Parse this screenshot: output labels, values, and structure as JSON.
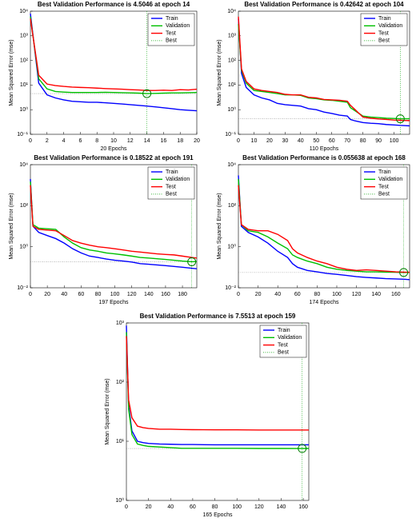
{
  "chart_data": [
    {
      "type": "line",
      "title": "Best Validation Performance is 4.5046 at epoch 14",
      "xlabel": "20 Epochs",
      "ylabel": "Mean Squared Error  (mse)",
      "yscale": "log",
      "legend": "northeast",
      "xlim": [
        0,
        20
      ],
      "xticks": [
        0,
        2,
        4,
        6,
        8,
        10,
        12,
        14,
        16,
        18,
        20
      ],
      "ylim": [
        0.1,
        10000
      ],
      "yticks": [
        {
          "value": 0.1,
          "label": "10⁻¹"
        },
        {
          "value": 1,
          "label": "10⁰"
        },
        {
          "value": 10,
          "label": "10¹"
        },
        {
          "value": 100,
          "label": "10²"
        },
        {
          "value": 1000,
          "label": "10³"
        },
        {
          "value": 10000,
          "label": "10⁴"
        }
      ],
      "x": [
        0,
        1,
        2,
        3,
        4,
        5,
        6,
        7,
        8,
        9,
        10,
        11,
        12,
        13,
        14,
        15,
        16,
        17,
        18,
        19,
        20
      ],
      "series": [
        {
          "name": "Train",
          "color": "#0000ff",
          "values": [
            8000,
            12,
            4,
            3,
            2.5,
            2.2,
            2.1,
            2.0,
            2.0,
            1.9,
            1.8,
            1.7,
            1.6,
            1.5,
            1.4,
            1.3,
            1.2,
            1.1,
            1.0,
            0.95,
            0.9
          ]
        },
        {
          "name": "Validation",
          "color": "#00c000",
          "values": [
            6000,
            18,
            7,
            5.5,
            5.2,
            5.0,
            5.0,
            5.0,
            5.0,
            5.1,
            5.0,
            4.9,
            4.8,
            4.7,
            4.5046,
            4.6,
            4.7,
            4.8,
            4.8,
            4.9,
            5.0
          ]
        },
        {
          "name": "Test",
          "color": "#ff0000",
          "values": [
            5000,
            25,
            11,
            9.5,
            8.8,
            8.3,
            8,
            7.8,
            7.5,
            7.2,
            7,
            6.8,
            6.5,
            6.3,
            6.0,
            6.0,
            6.2,
            6.0,
            6.5,
            6.3,
            6.8
          ]
        }
      ],
      "best": {
        "name": "Best",
        "color": "#00a000",
        "x": 14,
        "y": 4.5046
      }
    },
    {
      "type": "line",
      "title": "Best Validation Performance is 0.42642 at epoch 104",
      "xlabel": "110 Epochs",
      "ylabel": "Mean Squared Error  (mse)",
      "yscale": "log",
      "legend": "northeast",
      "xlim": [
        0,
        110
      ],
      "xticks": [
        0,
        10,
        20,
        30,
        40,
        50,
        60,
        70,
        80,
        90,
        100
      ],
      "ylim": [
        0.1,
        10000
      ],
      "yticks": [
        {
          "value": 0.1,
          "label": "10⁻¹"
        },
        {
          "value": 1,
          "label": "10⁰"
        },
        {
          "value": 10,
          "label": "10¹"
        },
        {
          "value": 100,
          "label": "10²"
        },
        {
          "value": 1000,
          "label": "10³"
        },
        {
          "value": 10000,
          "label": "10⁴"
        }
      ],
      "x": [
        0,
        2,
        5,
        10,
        15,
        20,
        25,
        30,
        35,
        40,
        45,
        50,
        55,
        60,
        65,
        70,
        72,
        75,
        80,
        85,
        90,
        95,
        100,
        104,
        110
      ],
      "series": [
        {
          "name": "Train",
          "color": "#0000ff",
          "values": [
            5000,
            30,
            8,
            4,
            3,
            2.5,
            1.8,
            1.6,
            1.5,
            1.4,
            1.1,
            1.0,
            0.8,
            0.7,
            0.6,
            0.55,
            0.4,
            0.35,
            0.3,
            0.28,
            0.27,
            0.25,
            0.24,
            0.23,
            0.22
          ]
        },
        {
          "name": "Validation",
          "color": "#00c000",
          "values": [
            3000,
            40,
            12,
            6,
            5.5,
            5,
            4.5,
            4,
            4,
            3.8,
            3,
            2.8,
            2.5,
            2.4,
            2.2,
            2,
            1.2,
            0.9,
            0.55,
            0.5,
            0.48,
            0.45,
            0.44,
            0.42642,
            0.43
          ]
        },
        {
          "name": "Test",
          "color": "#ff0000",
          "values": [
            6000,
            45,
            14,
            7,
            6,
            5.5,
            5,
            4.2,
            4,
            4,
            3.2,
            3,
            2.6,
            2.5,
            2.4,
            2.2,
            1.5,
            1.0,
            0.5,
            0.45,
            0.42,
            0.4,
            0.38,
            0.37,
            0.36
          ]
        }
      ],
      "best": {
        "name": "Best",
        "color": "#00a000",
        "x": 104,
        "y": 0.42642
      }
    },
    {
      "type": "line",
      "title": "Best Validation Performance is 0.18522 at epoch 191",
      "xlabel": "197 Epochs",
      "ylabel": "Mean Squared Error  (mse)",
      "yscale": "log",
      "legend": "northeast",
      "xlim": [
        0,
        197
      ],
      "xticks": [
        0,
        20,
        40,
        60,
        80,
        100,
        120,
        140,
        160,
        180
      ],
      "ylim": [
        0.01,
        10000
      ],
      "yticks": [
        {
          "value": 0.01,
          "label": "10⁻²"
        },
        {
          "value": 1,
          "label": "10⁰"
        },
        {
          "value": 100,
          "label": "10²"
        },
        {
          "value": 10000,
          "label": "10⁴"
        }
      ],
      "x": [
        0,
        3,
        10,
        20,
        30,
        40,
        50,
        60,
        70,
        80,
        90,
        100,
        110,
        120,
        130,
        140,
        150,
        160,
        170,
        180,
        191,
        197
      ],
      "series": [
        {
          "name": "Train",
          "color": "#0000ff",
          "values": [
            2000,
            10,
            5,
            3.5,
            2.5,
            1.5,
            0.8,
            0.5,
            0.35,
            0.3,
            0.25,
            0.22,
            0.2,
            0.18,
            0.15,
            0.14,
            0.13,
            0.12,
            0.11,
            0.1,
            0.09,
            0.085
          ]
        },
        {
          "name": "Validation",
          "color": "#00c000",
          "values": [
            1500,
            12,
            8,
            7.5,
            7,
            3,
            1.5,
            0.9,
            0.7,
            0.6,
            0.5,
            0.45,
            0.4,
            0.35,
            0.3,
            0.28,
            0.26,
            0.24,
            0.22,
            0.2,
            0.18522,
            0.19
          ]
        },
        {
          "name": "Test",
          "color": "#ff0000",
          "values": [
            1000,
            10,
            7,
            6.5,
            6,
            3.5,
            2,
            1.5,
            1.2,
            1,
            0.9,
            0.8,
            0.7,
            0.6,
            0.55,
            0.5,
            0.45,
            0.42,
            0.4,
            0.35,
            0.3,
            0.28
          ]
        }
      ],
      "best": {
        "name": "Best",
        "color": "#00a000",
        "x": 191,
        "y": 0.18522
      }
    },
    {
      "type": "line",
      "title": "Best Validation Performance is 0.055638 at epoch 168",
      "xlabel": "174 Epochs",
      "ylabel": "Mean Squared Error  (mse)",
      "yscale": "log",
      "legend": "northeast",
      "xlim": [
        0,
        174
      ],
      "xticks": [
        0,
        20,
        40,
        60,
        80,
        100,
        120,
        140,
        160
      ],
      "ylim": [
        0.01,
        10000
      ],
      "yticks": [
        {
          "value": 0.01,
          "label": "10⁻²"
        },
        {
          "value": 1,
          "label": "10⁰"
        },
        {
          "value": 100,
          "label": "10²"
        },
        {
          "value": 10000,
          "label": "10⁴"
        }
      ],
      "x": [
        0,
        3,
        10,
        20,
        30,
        40,
        50,
        55,
        60,
        70,
        80,
        90,
        100,
        110,
        120,
        130,
        140,
        150,
        160,
        168,
        174
      ],
      "series": [
        {
          "name": "Train",
          "color": "#0000ff",
          "values": [
            3000,
            10,
            5,
            3,
            1.5,
            0.6,
            0.3,
            0.15,
            0.1,
            0.07,
            0.06,
            0.05,
            0.045,
            0.04,
            0.035,
            0.032,
            0.03,
            0.028,
            0.027,
            0.026,
            0.025
          ]
        },
        {
          "name": "Validation",
          "color": "#00c000",
          "values": [
            2000,
            12,
            6,
            5,
            3,
            1.5,
            0.8,
            0.4,
            0.3,
            0.2,
            0.15,
            0.1,
            0.08,
            0.07,
            0.065,
            0.06,
            0.06,
            0.058,
            0.057,
            0.055638,
            0.056
          ]
        },
        {
          "name": "Test",
          "color": "#ff0000",
          "values": [
            1000,
            12,
            7,
            6,
            6,
            4,
            2,
            0.8,
            0.5,
            0.3,
            0.2,
            0.15,
            0.1,
            0.08,
            0.07,
            0.075,
            0.07,
            0.065,
            0.06,
            0.058,
            0.057
          ]
        }
      ],
      "best": {
        "name": "Best",
        "color": "#00a000",
        "x": 168,
        "y": 0.055638
      }
    },
    {
      "type": "line",
      "title": "Best Validation Performance is 7.5513 at epoch 159",
      "xlabel": "165 Epochs",
      "ylabel": "Mean Squared Error  (mse)",
      "yscale": "log",
      "legend": "northeast",
      "xlim": [
        0,
        165
      ],
      "xticks": [
        0,
        20,
        40,
        60,
        80,
        100,
        120,
        140,
        160
      ],
      "ylim": [
        1,
        1000
      ],
      "yticks": [
        {
          "value": 1,
          "label": "10⁰"
        },
        {
          "value": 10,
          "label": "10¹"
        },
        {
          "value": 100,
          "label": "10²"
        },
        {
          "value": 1000,
          "label": "10³"
        }
      ],
      "x": [
        0,
        2,
        5,
        10,
        15,
        20,
        30,
        40,
        50,
        60,
        80,
        100,
        120,
        140,
        159,
        165
      ],
      "series": [
        {
          "name": "Train",
          "color": "#0000ff",
          "values": [
            900,
            40,
            15,
            10,
            9.5,
            9.2,
            9,
            8.9,
            8.8,
            8.8,
            8.7,
            8.7,
            8.7,
            8.7,
            8.7,
            8.7
          ]
        },
        {
          "name": "Validation",
          "color": "#00c000",
          "values": [
            700,
            35,
            13,
            9,
            8.5,
            8.2,
            8,
            7.8,
            7.6,
            7.6,
            7.6,
            7.6,
            7.56,
            7.56,
            7.5513,
            7.56
          ]
        },
        {
          "name": "Test",
          "color": "#ff0000",
          "values": [
            600,
            50,
            25,
            18,
            17,
            16.5,
            16,
            16,
            15.8,
            15.7,
            15.6,
            15.6,
            15.5,
            15.5,
            15.5,
            15.5
          ]
        }
      ],
      "best": {
        "name": "Best",
        "color": "#00a000",
        "x": 159,
        "y": 7.5513
      }
    }
  ]
}
